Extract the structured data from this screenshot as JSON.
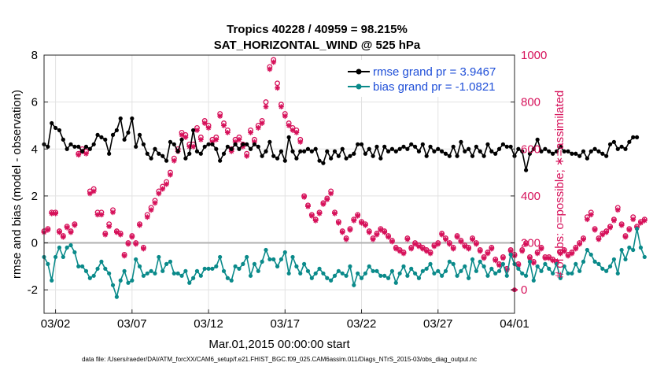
{
  "chart_data": {
    "type": "line",
    "title": "Tropics 40228 / 40959 = 98.215%",
    "subtitle": "SAT_HORIZONTAL_WIND @ 525 hPa",
    "xlabel": "Mar.01,2015 00:00:00 start",
    "ylabel_left": "rmse and bias (model - observation)",
    "ylabel_right": "# of obs: o=possible; ∗=assimilated",
    "footer": "data file: /Users/raeder/DAI/ATM_forcXX/CAM6_setup/f.e21.FHIST_BGC.f09_025.CAM6assim.011/Diags_NTrS_2015-03/obs_diag_output.nc",
    "x_tick_labels": [
      "03/02",
      "03/07",
      "03/12",
      "03/17",
      "03/22",
      "03/27",
      "04/01"
    ],
    "x_tick_values": [
      1,
      6,
      11,
      16,
      21,
      26,
      31
    ],
    "xlim": [
      0.25,
      31.0
    ],
    "ylim_left": [
      -3,
      8
    ],
    "y_left_ticks": [
      "-2",
      "0",
      "2",
      "4",
      "6",
      "8"
    ],
    "ylim_right": [
      -100,
      1000
    ],
    "y_right_ticks": [
      "0",
      "200",
      "400",
      "600",
      "800",
      "1000"
    ],
    "grid": true,
    "zero_line": 0,
    "legend": [
      {
        "label": "rmse grand pr = 3.9467",
        "color": "#000000"
      },
      {
        "label": "bias grand pr = -1.0821",
        "color": "#0a8a8a"
      }
    ],
    "colors": {
      "rmse": "#000000",
      "bias": "#0a8a8a",
      "obs": "#d6115a",
      "zero": "#b0b0b0",
      "grid": "#e2e2e2"
    },
    "x_start": 0.25,
    "x_step": 0.25,
    "series": [
      {
        "name": "rmse",
        "axis": "left",
        "values": [
          4.2,
          4.1,
          5.1,
          4.9,
          4.8,
          4.4,
          4.0,
          4.2,
          4.1,
          4.1,
          3.9,
          4.1,
          4.0,
          4.2,
          4.6,
          4.5,
          4.4,
          3.8,
          4.6,
          4.8,
          5.3,
          4.4,
          4.7,
          5.3,
          4.1,
          4.6,
          4.2,
          3.8,
          3.6,
          4.0,
          3.8,
          3.7,
          3.5,
          4.3,
          4.2,
          3.9,
          4.4,
          3.6,
          3.8,
          4.8,
          3.9,
          3.8,
          4.1,
          4.2,
          4.2,
          4.0,
          3.5,
          3.8,
          4.1,
          4.0,
          4.2,
          4.0,
          4.2,
          4.2,
          4.0,
          4.2,
          4.1,
          3.7,
          3.9,
          4.3,
          3.7,
          3.6,
          3.9,
          3.5,
          4.5,
          3.9,
          3.6,
          3.9,
          3.9,
          4.0,
          3.9,
          4.0,
          3.5,
          3.4,
          3.9,
          3.6,
          3.9,
          3.7,
          4.0,
          3.6,
          3.7,
          3.8,
          4.2,
          4.2,
          3.8,
          4.0,
          3.7,
          4.1,
          3.6,
          4.1,
          3.9,
          4.0,
          3.9,
          4.0,
          4.1,
          4.0,
          4.2,
          4.1,
          3.9,
          4.2,
          3.7,
          4.1,
          3.9,
          4.0,
          3.9,
          3.8,
          3.7,
          4.1,
          3.7,
          4.3,
          3.9,
          4.0,
          3.7,
          4.1,
          3.9,
          3.7,
          4.2,
          3.9,
          3.8,
          4.0,
          4.2,
          4.1,
          4.1,
          3.7,
          4.0,
          3.9,
          3.1,
          3.8,
          4.0,
          4.4,
          3.9,
          4.0,
          3.9,
          3.8,
          3.9,
          4.1,
          3.9,
          3.9,
          3.8,
          3.8,
          3.7,
          3.9,
          3.6,
          3.9,
          4.0,
          3.9,
          3.8,
          3.7,
          4.2,
          4.3,
          4.0,
          4.1,
          4.0,
          4.3,
          4.5,
          4.5
        ]
      },
      {
        "name": "bias",
        "axis": "left",
        "values": [
          -0.6,
          -0.9,
          -1.6,
          -0.6,
          -0.2,
          -0.6,
          -0.2,
          -0.1,
          -0.4,
          -1.0,
          -1.0,
          -1.2,
          -1.5,
          -1.4,
          -1.1,
          -0.8,
          -1.1,
          -1.3,
          -1.8,
          -2.3,
          -1.6,
          -1.2,
          -1.7,
          -1.6,
          -0.7,
          -1.0,
          -1.4,
          -1.3,
          -1.2,
          -1.3,
          -0.6,
          -1.2,
          -0.9,
          -0.8,
          -1.3,
          -1.3,
          -1.4,
          -1.2,
          -1.7,
          -1.5,
          -1.2,
          -1.4,
          -1.1,
          -1.1,
          -1.1,
          -1.0,
          -0.6,
          -1.2,
          -1.5,
          -1.6,
          -1.0,
          -1.1,
          -0.9,
          -0.6,
          -1.4,
          -0.9,
          -1.2,
          -0.8,
          -0.3,
          -0.7,
          -0.7,
          -1.0,
          -0.7,
          -0.4,
          -1.3,
          -0.6,
          -1.0,
          -1.3,
          -0.9,
          -1.2,
          -1.5,
          -1.3,
          -1.1,
          -1.3,
          -1.5,
          -1.6,
          -1.4,
          -1.2,
          -1.3,
          -1.4,
          -1.0,
          -1.8,
          -1.3,
          -1.5,
          -1.3,
          -1.0,
          -1.2,
          -1.2,
          -1.4,
          -1.4,
          -1.5,
          -1.2,
          -1.7,
          -1.3,
          -1.0,
          -1.4,
          -1.1,
          -1.3,
          -1.5,
          -1.2,
          -1.1,
          -0.9,
          -1.3,
          -1.2,
          -1.4,
          -1.2,
          -0.8,
          -0.9,
          -1.4,
          -1.2,
          -1.0,
          -1.5,
          -0.7,
          -1.2,
          -0.8,
          -1.0,
          -1.4,
          -1.1,
          -1.3,
          -1.2,
          -0.9,
          -1.4,
          -0.5,
          -0.9,
          -1.1,
          -1.3,
          -1.4,
          -0.8,
          -1.6,
          -1.0,
          -1.2,
          -0.9,
          -1.1,
          -1.3,
          -0.9,
          -1.5,
          -1.0,
          -1.3,
          -1.3,
          -0.9,
          -1.2,
          -0.8,
          -0.3,
          -0.5,
          -0.8,
          -0.9,
          -1.1,
          -1.2,
          -1.0,
          -0.7,
          -1.3,
          -0.3,
          -0.7,
          -0.2,
          -0.3,
          0.6,
          -0.2,
          -0.6
        ]
      },
      {
        "name": "obs possible",
        "axis": "right",
        "marker": "o",
        "values": [
          250,
          260,
          330,
          330,
          250,
          230,
          270,
          250,
          280,
          580,
          600,
          590,
          420,
          430,
          330,
          330,
          240,
          280,
          340,
          250,
          240,
          150,
          200,
          230,
          200,
          280,
          180,
          320,
          350,
          380,
          420,
          440,
          460,
          500,
          560,
          600,
          670,
          660,
          620,
          620,
          690,
          650,
          720,
          700,
          640,
          650,
          750,
          710,
          680,
          600,
          640,
          650,
          620,
          580,
          680,
          640,
          700,
          720,
          800,
          950,
          980,
          880,
          790,
          750,
          710,
          690,
          680,
          640,
          400,
          360,
          320,
          300,
          330,
          370,
          390,
          420,
          330,
          290,
          250,
          220,
          260,
          300,
          320,
          290,
          280,
          250,
          220,
          240,
          260,
          250,
          230,
          210,
          180,
          170,
          160,
          220,
          180,
          200,
          190,
          180,
          170,
          160,
          190,
          200,
          240,
          220,
          200,
          180,
          230,
          210,
          190,
          180,
          220,
          200,
          170,
          140,
          160,
          180,
          130,
          110,
          140,
          90,
          170,
          150,
          110,
          170,
          200,
          140,
          120,
          160,
          180,
          140,
          140,
          130,
          120,
          160,
          170,
          150,
          160,
          180,
          200,
          220,
          310,
          330,
          260,
          220,
          240,
          250,
          270,
          300,
          350,
          280,
          230,
          260,
          310,
          270,
          290,
          300
        ]
      },
      {
        "name": "obs assimilated",
        "axis": "right",
        "marker": "*",
        "values": [
          245,
          255,
          325,
          325,
          245,
          225,
          265,
          245,
          275,
          575,
          590,
          580,
          410,
          420,
          320,
          320,
          235,
          270,
          330,
          245,
          235,
          145,
          195,
          225,
          195,
          275,
          175,
          310,
          340,
          370,
          410,
          430,
          450,
          490,
          550,
          590,
          660,
          650,
          610,
          610,
          680,
          640,
          710,
          690,
          630,
          640,
          740,
          700,
          670,
          590,
          630,
          640,
          610,
          570,
          670,
          630,
          690,
          710,
          780,
          940,
          970,
          860,
          780,
          740,
          700,
          680,
          670,
          630,
          395,
          355,
          315,
          295,
          325,
          365,
          385,
          410,
          325,
          285,
          245,
          215,
          255,
          295,
          315,
          285,
          275,
          245,
          215,
          235,
          255,
          245,
          225,
          205,
          175,
          165,
          155,
          215,
          175,
          195,
          185,
          175,
          165,
          155,
          185,
          195,
          235,
          215,
          195,
          175,
          225,
          205,
          185,
          175,
          215,
          195,
          165,
          135,
          155,
          175,
          125,
          105,
          135,
          85,
          165,
          145,
          105,
          165,
          195,
          135,
          115,
          155,
          175,
          135,
          135,
          125,
          115,
          155,
          165,
          145,
          155,
          175,
          195,
          215,
          300,
          320,
          255,
          215,
          235,
          245,
          265,
          295,
          340,
          275,
          225,
          255,
          300,
          265,
          285,
          295
        ]
      }
    ],
    "end_point": {
      "x": 31.0,
      "y_right": 0
    }
  }
}
